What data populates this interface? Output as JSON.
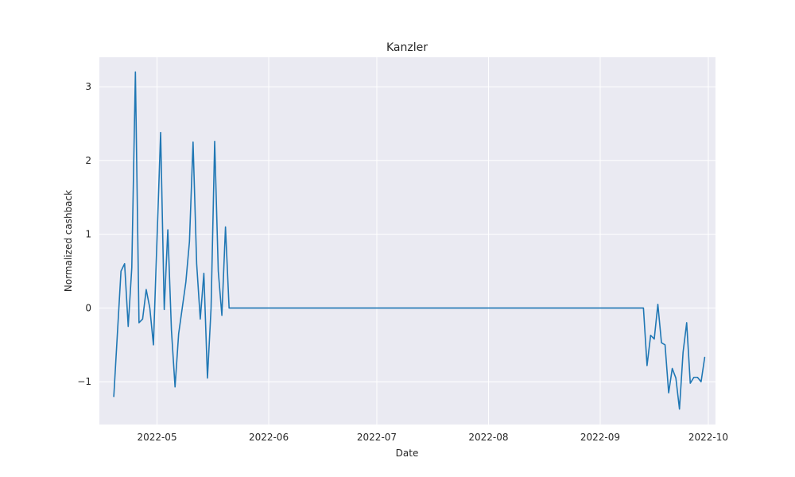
{
  "chart_data": {
    "type": "line",
    "title": "Kanzler",
    "xlabel": "Date",
    "ylabel": "Normalized cashback",
    "x_axis_type": "date",
    "xlim": [
      "2022-04-15",
      "2022-10-03"
    ],
    "ylim": [
      -1.58,
      3.4
    ],
    "grid": true,
    "line_color": "#1f77b4",
    "background_color": "#eaeaf2",
    "x_ticks": [
      "2022-05-01",
      "2022-06-01",
      "2022-07-01",
      "2022-08-01",
      "2022-09-01",
      "2022-10-01"
    ],
    "x_tick_labels": [
      "2022-05",
      "2022-06",
      "2022-07",
      "2022-08",
      "2022-09",
      "2022-10"
    ],
    "y_ticks": [
      -1,
      0,
      1,
      2,
      3
    ],
    "y_tick_labels": [
      "−1",
      "0",
      "1",
      "2",
      "3"
    ],
    "series": [
      {
        "points": [
          [
            "2022-04-19",
            -1.2
          ],
          [
            "2022-04-21",
            0.5
          ],
          [
            "2022-04-22",
            0.6
          ],
          [
            "2022-04-23",
            -0.25
          ],
          [
            "2022-04-24",
            0.55
          ],
          [
            "2022-04-25",
            3.2
          ],
          [
            "2022-04-26",
            -0.2
          ],
          [
            "2022-04-27",
            -0.15
          ],
          [
            "2022-04-28",
            0.25
          ],
          [
            "2022-04-29",
            0.0
          ],
          [
            "2022-04-30",
            -0.5
          ],
          [
            "2022-05-02",
            2.38
          ],
          [
            "2022-05-03",
            -0.02
          ],
          [
            "2022-05-04",
            1.06
          ],
          [
            "2022-05-05",
            -0.3
          ],
          [
            "2022-05-06",
            -1.07
          ],
          [
            "2022-05-07",
            -0.35
          ],
          [
            "2022-05-09",
            0.35
          ],
          [
            "2022-05-10",
            0.9
          ],
          [
            "2022-05-11",
            2.25
          ],
          [
            "2022-05-12",
            0.6
          ],
          [
            "2022-05-13",
            -0.15
          ],
          [
            "2022-05-14",
            0.47
          ],
          [
            "2022-05-15",
            -0.95
          ],
          [
            "2022-05-16",
            0.0
          ],
          [
            "2022-05-17",
            2.26
          ],
          [
            "2022-05-18",
            0.5
          ],
          [
            "2022-05-19",
            -0.1
          ],
          [
            "2022-05-20",
            1.1
          ],
          [
            "2022-05-21",
            0.0
          ],
          [
            "2022-09-13",
            0.0
          ],
          [
            "2022-09-14",
            -0.78
          ],
          [
            "2022-09-15",
            -0.37
          ],
          [
            "2022-09-16",
            -0.42
          ],
          [
            "2022-09-17",
            0.05
          ],
          [
            "2022-09-18",
            -0.47
          ],
          [
            "2022-09-19",
            -0.5
          ],
          [
            "2022-09-20",
            -1.15
          ],
          [
            "2022-09-21",
            -0.82
          ],
          [
            "2022-09-22",
            -0.95
          ],
          [
            "2022-09-23",
            -1.37
          ],
          [
            "2022-09-24",
            -0.6
          ],
          [
            "2022-09-25",
            -0.2
          ],
          [
            "2022-09-26",
            -1.02
          ],
          [
            "2022-09-27",
            -0.94
          ],
          [
            "2022-09-28",
            -0.94
          ],
          [
            "2022-09-29",
            -1.0
          ],
          [
            "2022-09-30",
            -0.67
          ]
        ]
      }
    ]
  }
}
